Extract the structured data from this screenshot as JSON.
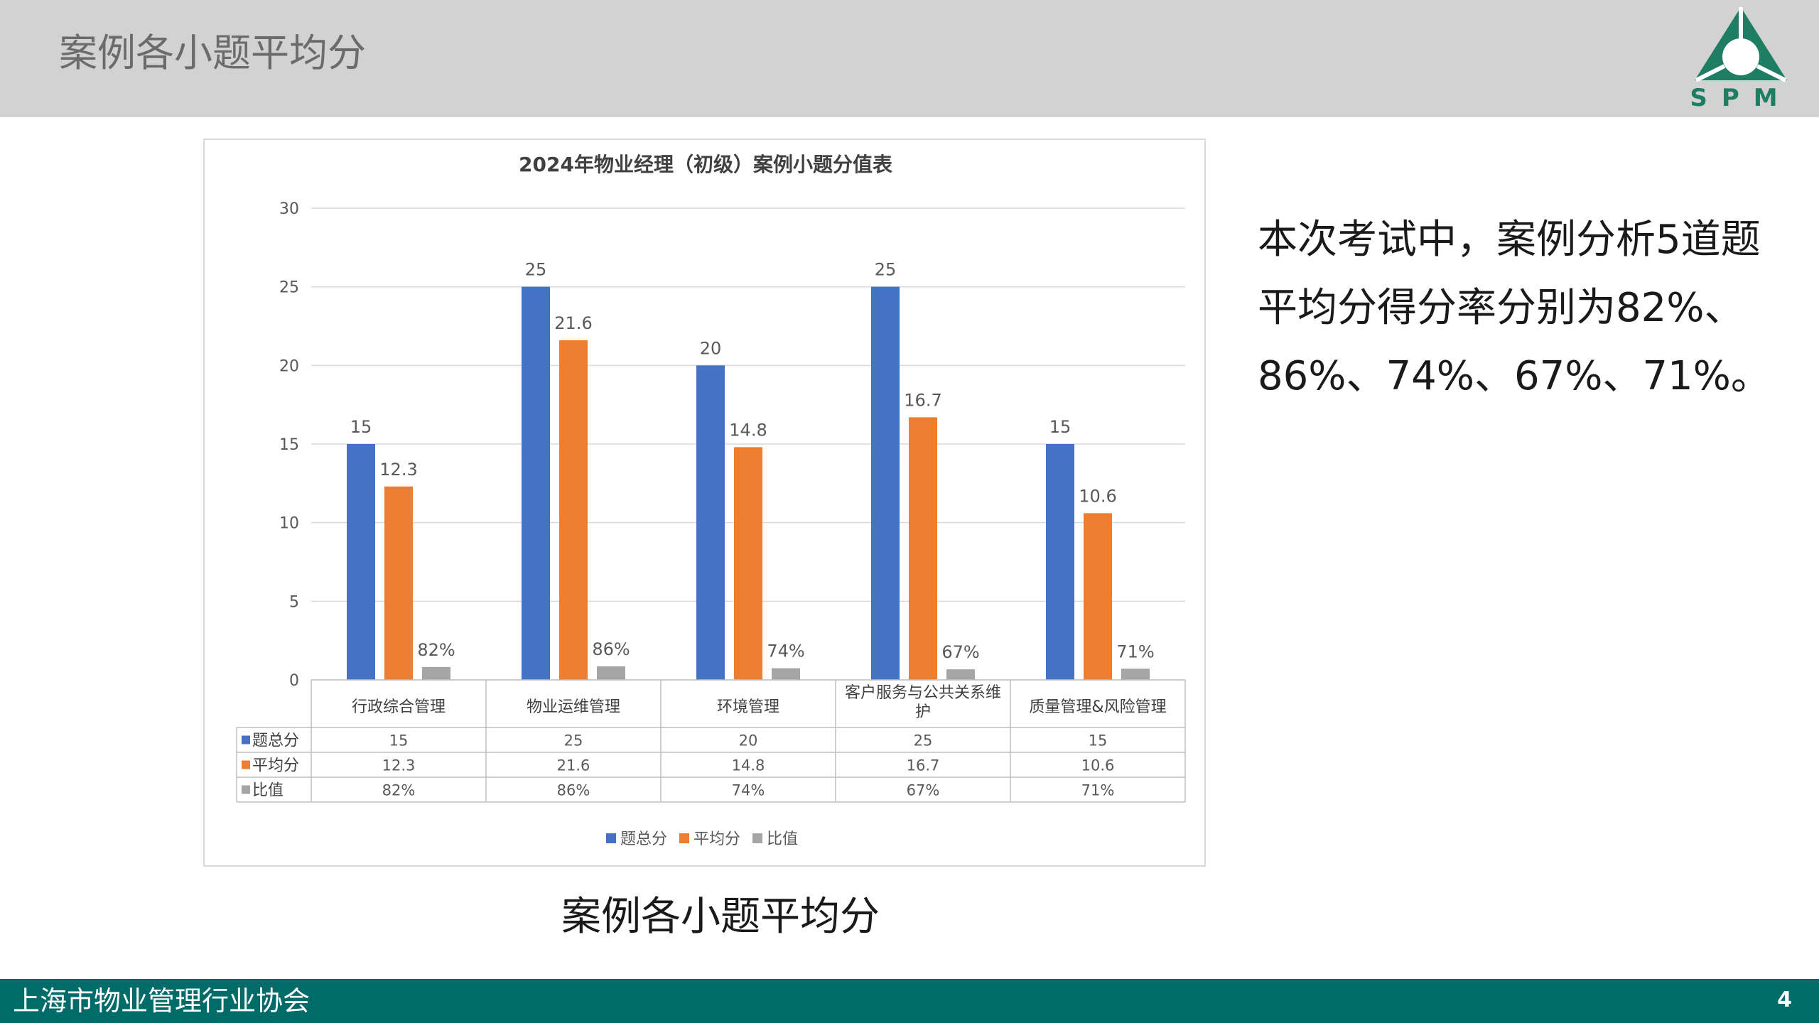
{
  "header": {
    "title": "案例各小题平均分"
  },
  "logo": {
    "text": "SPM"
  },
  "chart_data": {
    "type": "bar",
    "title": "2024年物业经理（初级）案例小题分值表",
    "categories": [
      "行政综合管理",
      "物业运维管理",
      "环境管理",
      "客户服务与公共关系维护",
      "质量管理&风险管理"
    ],
    "category_lines": [
      [
        "行政综合管理"
      ],
      [
        "物业运维管理"
      ],
      [
        "环境管理"
      ],
      [
        "客户服务与公共关系维",
        "护"
      ],
      [
        "质量管理&风险管理"
      ]
    ],
    "series": [
      {
        "name": "题总分",
        "values": [
          15,
          25,
          20,
          25,
          15
        ],
        "labels": [
          "15",
          "25",
          "20",
          "25",
          "15"
        ],
        "color": "#4472c4"
      },
      {
        "name": "平均分",
        "values": [
          12.3,
          21.6,
          14.8,
          16.7,
          10.6
        ],
        "labels": [
          "12.3",
          "21.6",
          "14.8",
          "16.7",
          "10.6"
        ],
        "color": "#ed7d31"
      },
      {
        "name": "比值",
        "values": [
          0.82,
          0.86,
          0.74,
          0.67,
          0.71
        ],
        "labels": [
          "82%",
          "86%",
          "74%",
          "67%",
          "71%"
        ],
        "color": "#a5a5a5"
      }
    ],
    "ylim": [
      0,
      30
    ],
    "yticks": [
      0,
      5,
      10,
      15,
      20,
      25,
      30
    ],
    "grid": true,
    "data_table": true,
    "legend": "bottom"
  },
  "body": {
    "text": "本次考试中，案例分析5道题平均分得分率分别为82%、86%、74%、67%、71%。"
  },
  "caption": {
    "text": "案例各小题平均分"
  },
  "footer": {
    "org": "上海市物业管理行业协会",
    "page": "4"
  }
}
